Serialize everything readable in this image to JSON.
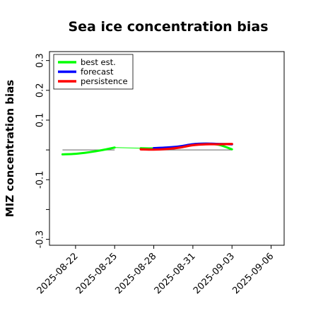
{
  "chart_data": {
    "type": "line",
    "title": "Sea ice concentration bias",
    "ylabel": "MIZ concentration bias",
    "xlabel": "",
    "ylim": [
      -0.32,
      0.33
    ],
    "xlim": [
      "2025-08-20",
      "2025-09-07"
    ],
    "yticks": [
      -0.3,
      -0.2,
      -0.1,
      0.0,
      0.1,
      0.2,
      0.3
    ],
    "ytick_labels": [
      "-0.3",
      "",
      "-0.1",
      "",
      "0.1",
      "0.2",
      "0.3"
    ],
    "xticks": [
      "2025-08-22",
      "2025-08-25",
      "2025-08-28",
      "2025-08-31",
      "2025-09-03",
      "2025-09-06"
    ],
    "xtick_labels": [
      "2025-08-22",
      "2025-08-25",
      "2025-08-28",
      "2025-08-31",
      "2025-09-03",
      "2025-09-06"
    ],
    "highlighted_xtick": "2025-08-28",
    "highlight_color": "#228b22",
    "legend": {
      "placement": "top-left"
    },
    "reference_lines": [
      {
        "x_start": "2025-08-21",
        "x_end": "2025-08-25",
        "y": 0.0,
        "color": "#808080"
      },
      {
        "x_start": "2025-08-27",
        "x_end": "2025-09-03",
        "y": 0.0,
        "color": "#808080"
      }
    ],
    "series": [
      {
        "name": "best est.",
        "color": "#00ff00",
        "points": [
          {
            "x": "2025-08-21",
            "y": -0.015
          },
          {
            "x": "2025-08-22",
            "y": -0.013
          },
          {
            "x": "2025-08-23",
            "y": -0.008
          },
          {
            "x": "2025-08-24",
            "y": -0.001
          },
          {
            "x": "2025-08-25",
            "y": 0.008
          },
          {
            "x": "2025-08-27",
            "y": 0.006
          },
          {
            "x": "2025-08-28",
            "y": 0.005
          },
          {
            "x": "2025-08-29",
            "y": 0.007
          },
          {
            "x": "2025-08-30",
            "y": 0.011
          },
          {
            "x": "2025-08-31",
            "y": 0.019
          },
          {
            "x": "2025-09-01",
            "y": 0.021
          },
          {
            "x": "2025-09-02",
            "y": 0.017
          },
          {
            "x": "2025-09-03",
            "y": 0.002
          }
        ]
      },
      {
        "name": "forecast",
        "color": "#0000ff",
        "points": [
          {
            "x": "2025-08-28",
            "y": 0.006
          },
          {
            "x": "2025-08-29",
            "y": 0.008
          },
          {
            "x": "2025-08-30",
            "y": 0.012
          },
          {
            "x": "2025-08-31",
            "y": 0.019
          },
          {
            "x": "2025-09-01",
            "y": 0.021
          },
          {
            "x": "2025-09-02",
            "y": 0.02
          },
          {
            "x": "2025-09-03",
            "y": 0.019
          }
        ]
      },
      {
        "name": "persistence",
        "color": "#ff0000",
        "points": [
          {
            "x": "2025-08-27",
            "y": 0.002
          },
          {
            "x": "2025-08-28",
            "y": 0.001
          },
          {
            "x": "2025-08-29",
            "y": 0.003
          },
          {
            "x": "2025-08-30",
            "y": 0.008
          },
          {
            "x": "2025-08-31",
            "y": 0.016
          },
          {
            "x": "2025-09-01",
            "y": 0.019
          },
          {
            "x": "2025-09-02",
            "y": 0.019
          },
          {
            "x": "2025-09-03",
            "y": 0.02
          }
        ]
      }
    ]
  }
}
